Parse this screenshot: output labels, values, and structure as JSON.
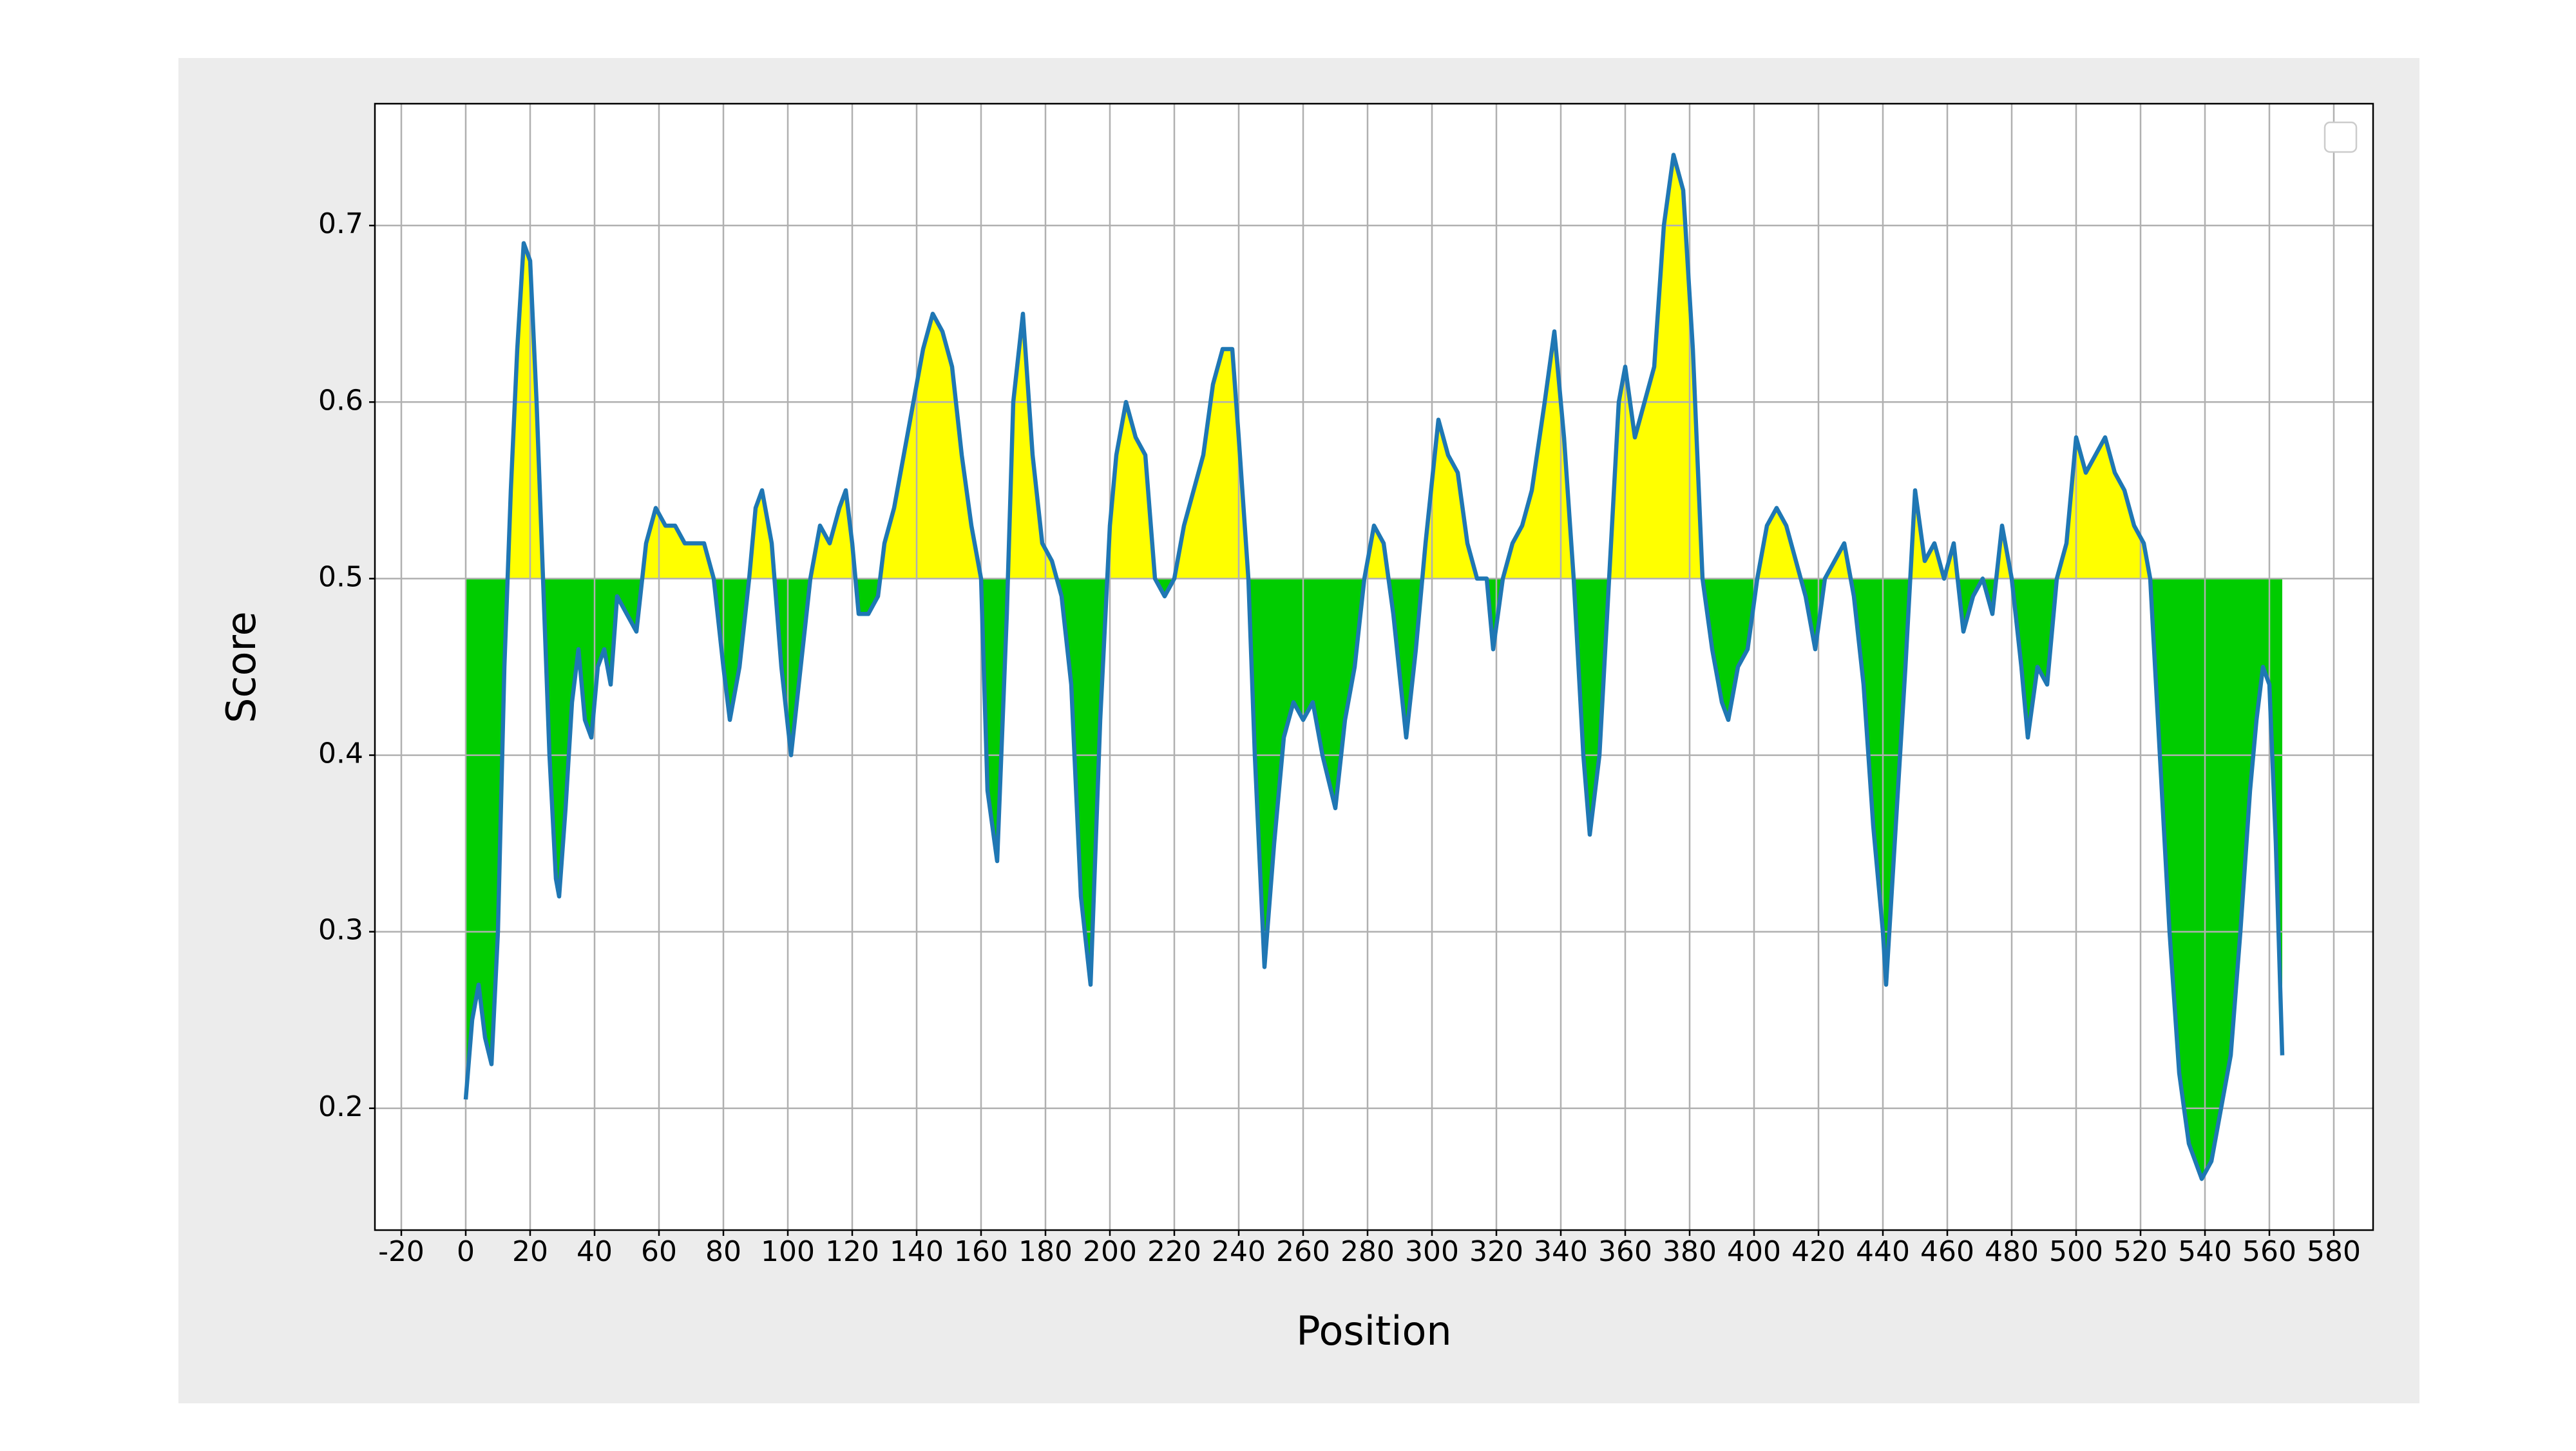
{
  "chart_data": {
    "type": "line",
    "x_label": "Position",
    "y_label": "Score",
    "x": [
      0,
      2,
      4,
      6,
      8,
      10,
      12,
      14,
      16,
      18,
      20,
      22,
      24,
      26,
      28,
      29,
      31,
      33,
      35,
      37,
      39,
      41,
      43,
      45,
      47,
      50,
      53,
      56,
      59,
      62,
      65,
      68,
      71,
      74,
      77,
      80,
      82,
      85,
      88,
      90,
      92,
      95,
      98,
      101,
      104,
      107,
      110,
      113,
      116,
      118,
      120,
      122,
      125,
      128,
      130,
      133,
      136,
      139,
      142,
      145,
      148,
      151,
      154,
      157,
      160,
      162,
      165,
      168,
      170,
      173,
      176,
      179,
      182,
      185,
      188,
      191,
      194,
      197,
      200,
      202,
      205,
      208,
      211,
      214,
      217,
      220,
      223,
      226,
      229,
      232,
      235,
      238,
      240,
      243,
      245,
      248,
      251,
      254,
      257,
      260,
      263,
      266,
      270,
      273,
      276,
      279,
      282,
      285,
      288,
      292,
      295,
      298,
      302,
      305,
      308,
      311,
      314,
      317,
      319,
      322,
      325,
      328,
      331,
      335,
      338,
      341,
      344,
      347,
      349,
      352,
      355,
      358,
      360,
      363,
      366,
      369,
      372,
      375,
      378,
      381,
      384,
      387,
      390,
      392,
      395,
      398,
      401,
      404,
      407,
      410,
      413,
      416,
      419,
      422,
      425,
      428,
      431,
      434,
      437,
      440,
      441,
      444,
      447,
      450,
      453,
      456,
      459,
      462,
      465,
      468,
      471,
      474,
      477,
      480,
      483,
      485,
      488,
      491,
      494,
      497,
      500,
      503,
      506,
      509,
      512,
      515,
      518,
      521,
      523,
      526,
      529,
      532,
      535,
      539,
      542,
      545,
      548,
      551,
      554,
      556,
      558,
      560,
      562,
      564
    ],
    "values": [
      0.205,
      0.25,
      0.27,
      0.24,
      0.225,
      0.3,
      0.45,
      0.55,
      0.63,
      0.69,
      0.68,
      0.6,
      0.5,
      0.4,
      0.33,
      0.32,
      0.37,
      0.43,
      0.46,
      0.42,
      0.41,
      0.45,
      0.46,
      0.44,
      0.49,
      0.48,
      0.47,
      0.52,
      0.54,
      0.53,
      0.53,
      0.52,
      0.52,
      0.52,
      0.5,
      0.45,
      0.42,
      0.45,
      0.5,
      0.54,
      0.55,
      0.52,
      0.45,
      0.4,
      0.45,
      0.5,
      0.53,
      0.52,
      0.54,
      0.55,
      0.52,
      0.48,
      0.48,
      0.49,
      0.52,
      0.54,
      0.57,
      0.6,
      0.63,
      0.65,
      0.64,
      0.62,
      0.57,
      0.53,
      0.5,
      0.38,
      0.34,
      0.48,
      0.6,
      0.65,
      0.57,
      0.52,
      0.51,
      0.49,
      0.44,
      0.32,
      0.27,
      0.42,
      0.53,
      0.57,
      0.6,
      0.58,
      0.57,
      0.5,
      0.49,
      0.5,
      0.53,
      0.55,
      0.57,
      0.61,
      0.63,
      0.63,
      0.58,
      0.5,
      0.4,
      0.28,
      0.35,
      0.41,
      0.43,
      0.42,
      0.43,
      0.4,
      0.37,
      0.42,
      0.45,
      0.5,
      0.53,
      0.52,
      0.48,
      0.41,
      0.46,
      0.52,
      0.59,
      0.57,
      0.56,
      0.52,
      0.5,
      0.5,
      0.46,
      0.5,
      0.52,
      0.53,
      0.55,
      0.6,
      0.64,
      0.58,
      0.5,
      0.4,
      0.355,
      0.4,
      0.5,
      0.6,
      0.62,
      0.58,
      0.6,
      0.62,
      0.7,
      0.74,
      0.72,
      0.63,
      0.5,
      0.46,
      0.43,
      0.42,
      0.45,
      0.46,
      0.5,
      0.53,
      0.54,
      0.53,
      0.51,
      0.49,
      0.46,
      0.5,
      0.51,
      0.52,
      0.49,
      0.44,
      0.36,
      0.3,
      0.27,
      0.36,
      0.45,
      0.55,
      0.51,
      0.52,
      0.5,
      0.52,
      0.47,
      0.49,
      0.5,
      0.48,
      0.53,
      0.5,
      0.45,
      0.41,
      0.45,
      0.44,
      0.5,
      0.52,
      0.58,
      0.56,
      0.57,
      0.58,
      0.56,
      0.55,
      0.53,
      0.52,
      0.5,
      0.4,
      0.3,
      0.22,
      0.18,
      0.16,
      0.17,
      0.2,
      0.23,
      0.3,
      0.38,
      0.42,
      0.45,
      0.44,
      0.35,
      0.23
    ],
    "color": "#1f77b4",
    "threshold": 0.5,
    "fill_above_color": "#ffff00",
    "fill_below_color": "#00cc00",
    "xlim": [
      -28.2,
      592.2
    ],
    "ylim": [
      0.131,
      0.769
    ],
    "xticks": [
      -20,
      0,
      20,
      40,
      60,
      80,
      100,
      120,
      140,
      160,
      180,
      200,
      220,
      240,
      260,
      280,
      300,
      320,
      340,
      360,
      380,
      400,
      420,
      440,
      460,
      480,
      500,
      520,
      540,
      560,
      580
    ],
    "yticks": [
      0.2,
      0.3,
      0.4,
      0.5,
      0.6,
      0.7
    ],
    "grid": true,
    "legend": "upper right"
  }
}
